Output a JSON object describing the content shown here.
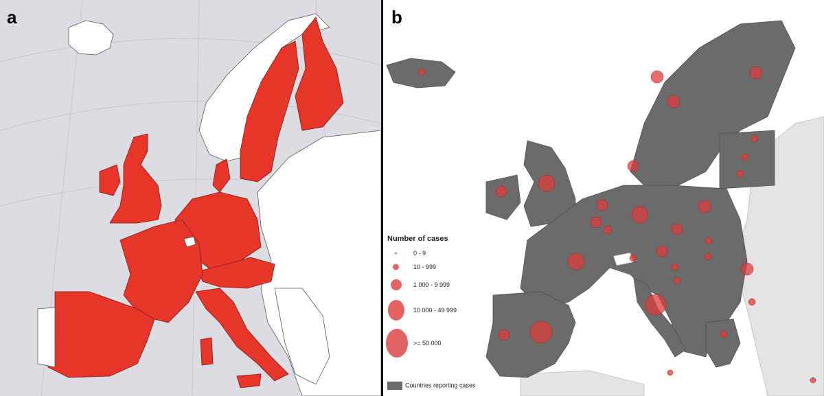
{
  "panel_a": {
    "label": "a"
  },
  "panel_b": {
    "label": "b",
    "legend": {
      "title": "Number of cases",
      "classes": [
        {
          "label": "0 - 9"
        },
        {
          "label": "10 - 999"
        },
        {
          "label": "1 000 - 9 999"
        },
        {
          "label": "10 000 - 49 999"
        },
        {
          "label": ">= 50 000"
        }
      ],
      "swatch_label": "Countries reporting cases"
    }
  },
  "colors": {
    "sea_a": "#dcdce2",
    "highlight_a": "#e8352a",
    "non_highlight": "#ffffff",
    "reporting": "#6b6b6b",
    "non_reporting": "#e4e4e4",
    "bubble": "#dc3c3c"
  }
}
